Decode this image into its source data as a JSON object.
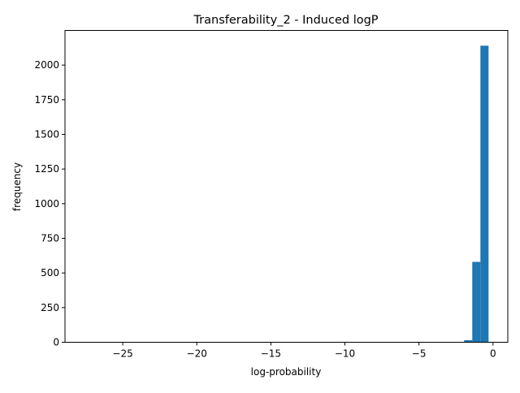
{
  "chart_data": {
    "type": "bar",
    "subtype": "histogram",
    "title": "Transferability_2 - Induced logP",
    "xlabel": "log-probability",
    "ylabel": "frequency",
    "xlim": [
      -28.9,
      1.0
    ],
    "ylim": [
      0,
      2250
    ],
    "x_ticks": [
      -25,
      -20,
      -15,
      -10,
      -5,
      0
    ],
    "x_tick_labels": [
      "−25",
      "−20",
      "−15",
      "−10",
      "−5",
      "0"
    ],
    "y_ticks": [
      0,
      250,
      500,
      750,
      1000,
      1250,
      1500,
      1750,
      2000
    ],
    "y_tick_labels": [
      "0",
      "250",
      "500",
      "750",
      "1000",
      "1250",
      "1500",
      "1750",
      "2000"
    ],
    "grid": false,
    "color": "#1f77b4",
    "bins": [
      {
        "x0": -1.95,
        "x1": -1.4,
        "count": 15
      },
      {
        "x0": -1.4,
        "x1": -0.85,
        "count": 580
      },
      {
        "x0": -0.85,
        "x1": -0.3,
        "count": 2140
      }
    ]
  }
}
